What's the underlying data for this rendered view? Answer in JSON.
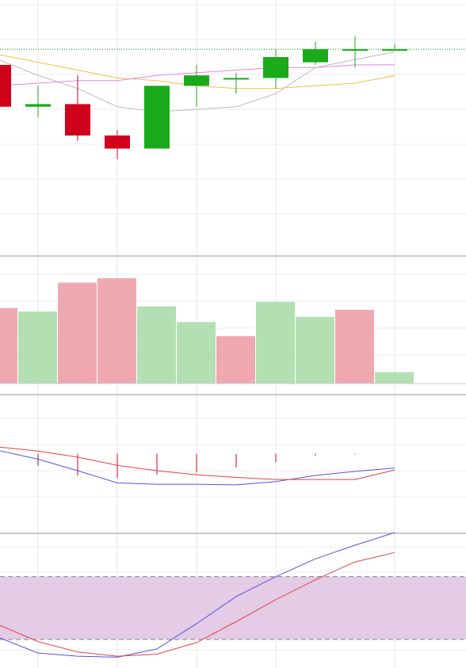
{
  "chart_data": [
    {
      "type": "candlestick",
      "panel": "price",
      "x": [
        0,
        1,
        2,
        3,
        4,
        5,
        6,
        7,
        8,
        9,
        10
      ],
      "ylim": [
        125,
        205
      ],
      "grid": true,
      "last_price_line": {
        "value": 188,
        "color": "#0a8a0a"
      },
      "candles": [
        {
          "open": 182,
          "high": 186,
          "low": 164,
          "close": 166
        },
        {
          "open": 166,
          "high": 174,
          "low": 162,
          "close": 167
        },
        {
          "open": 167,
          "high": 178,
          "low": 153,
          "close": 155
        },
        {
          "open": 155,
          "high": 157,
          "low": 146,
          "close": 150
        },
        {
          "open": 150,
          "high": 174,
          "low": 150,
          "close": 174
        },
        {
          "open": 174,
          "high": 182,
          "low": 166,
          "close": 178
        },
        {
          "open": 177,
          "high": 179,
          "low": 171,
          "close": 177
        },
        {
          "open": 177,
          "high": 188,
          "low": 173,
          "close": 185
        },
        {
          "open": 183,
          "high": 191,
          "low": 182,
          "close": 188
        },
        {
          "open": 188,
          "high": 193,
          "low": 181,
          "close": 188
        },
        {
          "open": 188,
          "high": 190,
          "low": 188,
          "close": 188
        }
      ],
      "colors": {
        "up": "#1aaa1a",
        "down": "#d0021b"
      },
      "overlays": [
        {
          "color": "#f5c040",
          "values": [
            186,
            183,
            180,
            177,
            176,
            174,
            173,
            173,
            174,
            175,
            178
          ]
        },
        {
          "color": "#e883e0",
          "values": [
            174,
            175,
            176,
            176,
            178,
            179,
            180,
            181,
            181,
            182,
            182
          ]
        },
        {
          "color": "#bbbbbb",
          "values": [
            184,
            178,
            173,
            166,
            164,
            165,
            166,
            171,
            181,
            184,
            187
          ]
        }
      ]
    },
    {
      "type": "bar",
      "panel": "volume",
      "x": [
        0,
        1,
        2,
        3,
        4,
        5,
        6,
        7,
        8,
        9,
        10
      ],
      "ylim": [
        0,
        130
      ],
      "grid": true,
      "values": [
        86,
        82,
        115,
        120,
        88,
        70,
        54,
        93,
        76,
        84,
        13
      ],
      "directions": [
        "down",
        "up",
        "down",
        "down",
        "up",
        "up",
        "down",
        "up",
        "up",
        "down",
        "up"
      ],
      "colors": {
        "up": "#b2e0b2",
        "down": "#f0a8b0"
      }
    },
    {
      "type": "line",
      "panel": "macd",
      "x": [
        0,
        1,
        2,
        3,
        4,
        5,
        6,
        7,
        8,
        9,
        10
      ],
      "ylim": [
        -10,
        5
      ],
      "grid": true,
      "series": [
        {
          "color": "#5555dd",
          "values": [
            0.5,
            -0.8,
            -2.5,
            -4.3,
            -4.5,
            -4.5,
            -4.6,
            -4.1,
            -3.2,
            -2.6,
            -2.1
          ]
        },
        {
          "color": "#e84040",
          "values": [
            1.0,
            0.4,
            -0.5,
            -1.7,
            -2.5,
            -3.1,
            -3.5,
            -3.8,
            -3.8,
            -3.8,
            -2.4
          ]
        }
      ],
      "histogram": {
        "color": "#d0021b",
        "values": [
          -0.8,
          -1.8,
          -3.2,
          -3.6,
          -3.1,
          -2.8,
          -2.0,
          -1.2,
          -0.3,
          -0.1,
          0.0
        ]
      }
    },
    {
      "type": "line",
      "panel": "stochastic",
      "x": [
        0,
        1,
        2,
        3,
        4,
        5,
        6,
        7,
        8,
        9,
        10
      ],
      "ylim": [
        -5,
        110
      ],
      "grid": true,
      "band": {
        "from": 20,
        "to": 80,
        "color": "#e4cbe6",
        "line_color": "#888888"
      },
      "series": [
        {
          "color": "#5555dd",
          "values": [
            22,
            7,
            4,
            3,
            11,
            35,
            61,
            80,
            97,
            110,
            122
          ]
        },
        {
          "color": "#e84040",
          "values": [
            34,
            18,
            8,
            4,
            6,
            17,
            37,
            58,
            77,
            94,
            103
          ]
        }
      ]
    }
  ]
}
